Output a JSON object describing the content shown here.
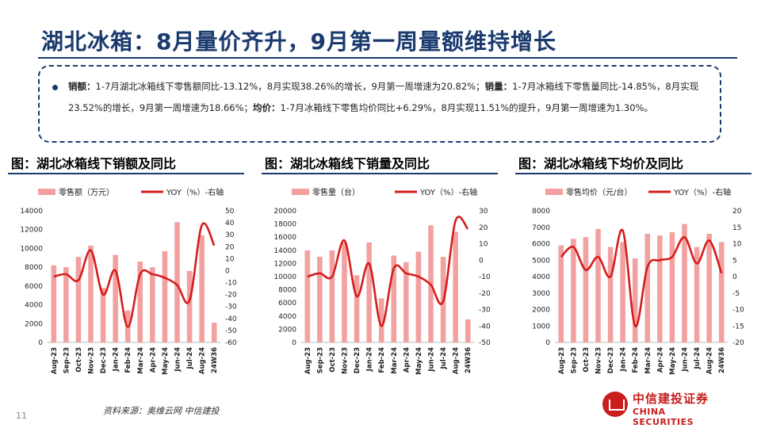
{
  "title": "湖北冰箱：8月量价齐升，9月第一周量额维持增长",
  "summary": {
    "s1_label": "销额：",
    "s1_text": "1-7月湖北冰箱线下零售额同比-13.12%，8月实现38.26%的增长，9月第一周增速为20.82%；",
    "s2_label": "销量：",
    "s2_text": "1-7月冰箱线下零售量同比-14.85%，8月实现23.52%的增长，9月第一周增速为18.66%；",
    "s3_label": "均价：",
    "s3_text": "1-7月冰箱线下零售均价同比+6.29%，8月实现11.51%的提升，9月第一周增速为1.30%。"
  },
  "charts": [
    {
      "title": "图：湖北冰箱线下销额及同比"
    },
    {
      "title": "图：湖北冰箱线下销量及同比"
    },
    {
      "title": "图：湖北冰箱线下均价及同比"
    }
  ],
  "source": "资料来源：奥维云网  中信建投",
  "page_number": "11",
  "logo": {
    "cn": "中信建投证券",
    "en": "CHINA SECURITIES"
  },
  "colors": {
    "bar": "#f2a0a0",
    "line": "#d61c1c",
    "accent": "#1a3a6e"
  },
  "chart_data": [
    {
      "type": "bar+line",
      "title": "图：湖北冰箱线下销额及同比",
      "categories": [
        "Aug-23",
        "Sep-23",
        "Oct-23",
        "Nov-23",
        "Dec-23",
        "Jan-24",
        "Feb-24",
        "Mar-24",
        "Apr-24",
        "May-24",
        "Jun-24",
        "Jul-24",
        "Aug-24",
        "24W36"
      ],
      "series": [
        {
          "name": "零售额（万元）",
          "type": "bar",
          "axis": "left",
          "values": [
            8200,
            8000,
            9100,
            10300,
            5800,
            9300,
            3400,
            8600,
            8000,
            9700,
            12800,
            7600,
            11400,
            2100
          ]
        },
        {
          "name": "YOY（%）-右轴",
          "type": "line",
          "axis": "right",
          "values": [
            -5,
            -3,
            -8,
            17,
            -20,
            0,
            -47,
            -3,
            -3,
            -6,
            -12,
            -25,
            38,
            21
          ]
        }
      ],
      "ylim_left": [
        0,
        14000
      ],
      "yticks_left": [
        0,
        2000,
        4000,
        6000,
        8000,
        10000,
        12000,
        14000
      ],
      "ylim_right": [
        -60,
        50
      ],
      "yticks_right": [
        -60,
        -50,
        -40,
        -30,
        -20,
        -10,
        0,
        10,
        20,
        30,
        40,
        50
      ]
    },
    {
      "type": "bar+line",
      "title": "图：湖北冰箱线下销量及同比",
      "categories": [
        "Aug-23",
        "Sep-23",
        "Oct-23",
        "Nov-23",
        "Dec-23",
        "Jan-24",
        "Feb-24",
        "Mar-24",
        "Apr-24",
        "May-24",
        "Jun-24",
        "Jul-24",
        "Aug-24",
        "24W36"
      ],
      "series": [
        {
          "name": "零售量（台）",
          "type": "bar",
          "axis": "left",
          "values": [
            14000,
            13000,
            14000,
            15200,
            10200,
            15200,
            6700,
            13200,
            12200,
            13800,
            17800,
            13000,
            16800,
            3500
          ]
        },
        {
          "name": "YOY（%）-右轴",
          "type": "line",
          "axis": "right",
          "values": [
            -10,
            -8,
            -10,
            12,
            -22,
            -2,
            -40,
            -5,
            -8,
            -10,
            -15,
            -25,
            24,
            19
          ]
        }
      ],
      "ylim_left": [
        0,
        20000
      ],
      "yticks_left": [
        0,
        2000,
        4000,
        6000,
        8000,
        10000,
        12000,
        14000,
        16000,
        18000,
        20000
      ],
      "ylim_right": [
        -50,
        30
      ],
      "yticks_right": [
        -50,
        -40,
        -30,
        -20,
        -10,
        0,
        10,
        20,
        30
      ]
    },
    {
      "type": "bar+line",
      "title": "图：湖北冰箱线下均价及同比",
      "categories": [
        "Aug-23",
        "Sep-23",
        "Oct-23",
        "Nov-23",
        "Dec-23",
        "Jan-24",
        "Feb-24",
        "Mar-24",
        "Apr-24",
        "May-24",
        "Jun-24",
        "Jul-24",
        "Aug-24",
        "24W36"
      ],
      "series": [
        {
          "name": "零售均价（元/台）",
          "type": "bar",
          "axis": "left",
          "values": [
            5900,
            6300,
            6400,
            6900,
            5800,
            6100,
            5100,
            6600,
            6500,
            6700,
            7200,
            5800,
            6600,
            6100
          ]
        },
        {
          "name": "YOY（%）-右轴",
          "type": "line",
          "axis": "right",
          "values": [
            6,
            9,
            2,
            6,
            0,
            14,
            -15,
            3,
            5,
            6,
            12,
            4,
            11,
            1
          ]
        }
      ],
      "ylim_left": [
        0,
        8000
      ],
      "yticks_left": [
        0,
        1000,
        2000,
        3000,
        4000,
        5000,
        6000,
        7000,
        8000
      ],
      "ylim_right": [
        -20,
        20
      ],
      "yticks_right": [
        -20,
        -15,
        -10,
        -5,
        0,
        5,
        10,
        15,
        20
      ]
    }
  ]
}
